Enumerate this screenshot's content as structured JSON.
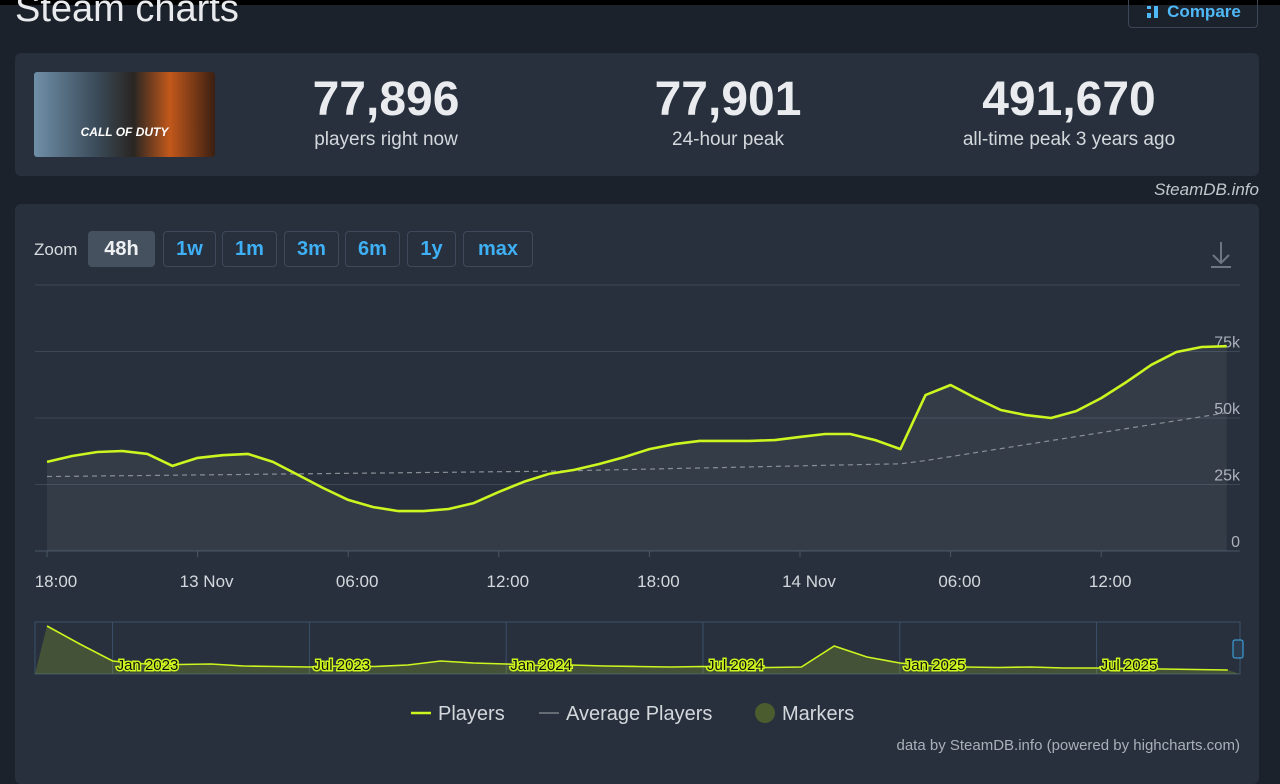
{
  "header": {
    "title": "Steam charts",
    "compare": "Compare"
  },
  "game": {
    "logo_text": "CALL OF DUTY"
  },
  "stats": [
    {
      "value": "77,896",
      "label": "players right now"
    },
    {
      "value": "77,901",
      "label": "24-hour peak"
    },
    {
      "value": "491,670",
      "label": "all-time peak 3 years ago"
    }
  ],
  "source": "SteamDB.info",
  "zoom": {
    "label": "Zoom",
    "options": [
      "48h",
      "1w",
      "1m",
      "3m",
      "6m",
      "1y",
      "max"
    ],
    "active": "48h"
  },
  "chart_data": {
    "type": "line",
    "categories": [
      "18:00",
      null,
      null,
      null,
      null,
      null,
      "13 Nov",
      null,
      null,
      null,
      null,
      null,
      "06:00",
      null,
      null,
      null,
      null,
      null,
      "12:00",
      null,
      null,
      null,
      null,
      null,
      "18:00",
      null,
      null,
      null,
      null,
      null,
      "14 Nov",
      null,
      null,
      null,
      null,
      null,
      "06:00",
      null,
      null,
      null,
      null,
      null,
      "12:00",
      null,
      null,
      null,
      null,
      null
    ],
    "series": [
      {
        "name": "Players",
        "color": "#cdf51f",
        "values": [
          33500,
          35700,
          37200,
          37600,
          36500,
          32000,
          35000,
          36000,
          36500,
          33500,
          28600,
          23700,
          19200,
          16500,
          15000,
          15000,
          15800,
          18000,
          22200,
          26000,
          29000,
          30500,
          32700,
          35300,
          38300,
          40200,
          41400,
          41400,
          41400,
          41700,
          42900,
          44000,
          44000,
          41700,
          38300,
          58600,
          62400,
          57500,
          53000,
          51100,
          50000,
          52600,
          57500,
          63500,
          70000,
          74800,
          76700,
          77000
        ]
      },
      {
        "name": "Average Players",
        "color": "#8a8f96",
        "values": [
          28000,
          28100,
          28200,
          28300,
          28400,
          28500,
          28600,
          28700,
          28800,
          28900,
          29000,
          29100,
          29200,
          29300,
          29400,
          29500,
          29600,
          29700,
          29800,
          29900,
          30000,
          30200,
          30400,
          30600,
          30800,
          31000,
          31200,
          31400,
          31600,
          31800,
          32000,
          32200,
          32400,
          32600,
          32800,
          34000,
          35500,
          37000,
          38500,
          40000,
          41500,
          43000,
          44500,
          46000,
          47500,
          49000,
          50500,
          52000
        ]
      }
    ],
    "markers": {
      "name": "Markers",
      "color": "#4b5d2e"
    },
    "ylim": [
      0,
      100000
    ],
    "yticks": [
      0,
      {
        "value": 25000,
        "label": "25k"
      },
      {
        "value": 50000,
        "label": "50k"
      },
      {
        "value": 75000,
        "label": "75k"
      }
    ],
    "grid": true,
    "legend": "bottom"
  },
  "navigator": {
    "categories": [
      null,
      null,
      "Jan 2023",
      null,
      null,
      null,
      null,
      null,
      "Jul 2023",
      null,
      null,
      null,
      null,
      null,
      "Jan 2024",
      null,
      null,
      null,
      null,
      null,
      "Jul 2024",
      null,
      null,
      null,
      null,
      null,
      "Jan 2025",
      null,
      null,
      null,
      null,
      null,
      "Jul 2025",
      null,
      null,
      null,
      null
    ],
    "values": [
      480000,
      300000,
      130000,
      100000,
      95000,
      100000,
      80000,
      75000,
      70000,
      80000,
      75000,
      90000,
      130000,
      110000,
      100000,
      85000,
      90000,
      80000,
      75000,
      70000,
      75000,
      70000,
      65000,
      70000,
      280000,
      170000,
      110000,
      80000,
      70000,
      65000,
      70000,
      60000,
      60000,
      55000,
      50000,
      45000,
      40000
    ],
    "ylim": [
      0,
      500000
    ]
  },
  "credits": "data by SteamDB.info (powered by highcharts.com)"
}
